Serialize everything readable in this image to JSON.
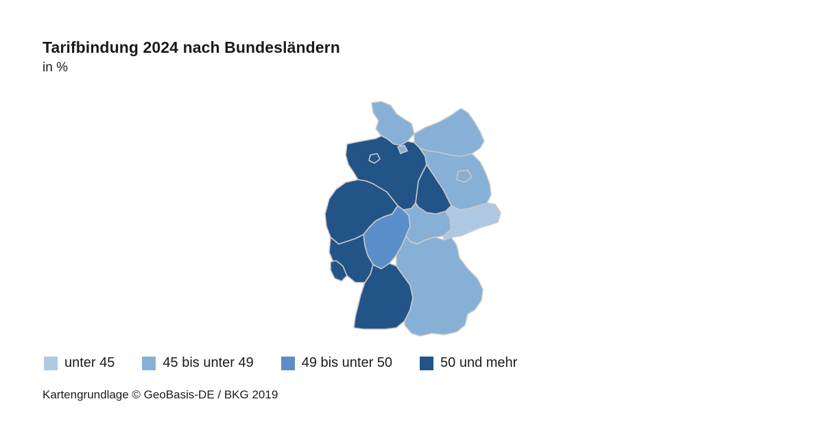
{
  "title": "Tarifbindung 2024 nach Bundesländern",
  "subtitle": "in %",
  "legend": [
    {
      "label": "unter 45",
      "color": "#afc8e2"
    },
    {
      "label": "45 bis unter 49",
      "color": "#87b0d6"
    },
    {
      "label": "49 bis unter 50",
      "color": "#5a8ec8"
    },
    {
      "label": "50 und mehr",
      "color": "#235487"
    }
  ],
  "regions": [
    {
      "name": "Schleswig-Holstein",
      "category": 1
    },
    {
      "name": "Mecklenburg-Vorpommern",
      "category": 1
    },
    {
      "name": "Niedersachsen",
      "category": 3
    },
    {
      "name": "Bremen",
      "category": 3
    },
    {
      "name": "Hamburg",
      "category": 1
    },
    {
      "name": "Brandenburg",
      "category": 1
    },
    {
      "name": "Berlin",
      "category": 1
    },
    {
      "name": "Sachsen-Anhalt",
      "category": 3
    },
    {
      "name": "Nordrhein-Westfalen",
      "category": 3
    },
    {
      "name": "Hessen",
      "category": 2
    },
    {
      "name": "Thüringen",
      "category": 1
    },
    {
      "name": "Sachsen",
      "category": 0
    },
    {
      "name": "Rheinland-Pfalz",
      "category": 3
    },
    {
      "name": "Saarland",
      "category": 3
    },
    {
      "name": "Baden-Württemberg",
      "category": 3
    },
    {
      "name": "Bayern",
      "category": 1
    }
  ],
  "source": "Kartengrundlage © GeoBasis-DE / BKG 2019"
}
